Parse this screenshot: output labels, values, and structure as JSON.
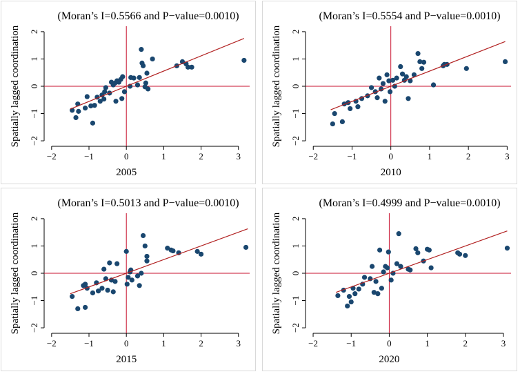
{
  "colors": {
    "point": "#1a476f",
    "fit_line": "#b22222",
    "reference_line": "#c8102e",
    "axis": "#000000",
    "panel_border": "#d9d9d9"
  },
  "chart_data": [
    {
      "type": "scatter",
      "title": "(Moran’s I=0.5566 and P−value=0.0010)",
      "xlabel": "2005",
      "ylabel": "Spatially lagged coordination",
      "xlim": [
        -2.2,
        3.3
      ],
      "ylim": [
        -2.2,
        2.2
      ],
      "xticks": [
        -2,
        -1,
        0,
        1,
        2,
        3
      ],
      "yticks": [
        -2,
        -1,
        0,
        1,
        2
      ],
      "xtick_labels": [
        "−2",
        "−1",
        "0",
        "1",
        "2",
        "3"
      ],
      "ytick_labels": [
        "−2",
        "−1",
        "0",
        "1",
        "2"
      ],
      "reference_lines": {
        "x": 0,
        "y": 0
      },
      "fit_line": {
        "slope": 0.5566,
        "intercept": 0.0,
        "x_range": [
          -1.5,
          3.15
        ]
      },
      "points": [
        [
          -1.45,
          -0.88
        ],
        [
          -1.35,
          -1.15
        ],
        [
          -1.3,
          -0.65
        ],
        [
          -1.28,
          -0.92
        ],
        [
          -1.1,
          -0.8
        ],
        [
          -1.05,
          -0.38
        ],
        [
          -0.9,
          -1.35
        ],
        [
          -0.95,
          -0.72
        ],
        [
          -0.85,
          -0.7
        ],
        [
          -0.78,
          -0.4
        ],
        [
          -0.7,
          -0.55
        ],
        [
          -0.65,
          -0.32
        ],
        [
          -0.6,
          -0.47
        ],
        [
          -0.58,
          -0.2
        ],
        [
          -0.55,
          -0.05
        ],
        [
          -0.45,
          -0.25
        ],
        [
          -0.4,
          0.15
        ],
        [
          -0.35,
          0.05
        ],
        [
          -0.3,
          0.12
        ],
        [
          -0.28,
          -0.55
        ],
        [
          -0.25,
          0.2
        ],
        [
          -0.2,
          0.15
        ],
        [
          -0.15,
          0.25
        ],
        [
          -0.12,
          -0.45
        ],
        [
          -0.1,
          0.35
        ],
        [
          -0.05,
          -0.2
        ],
        [
          0.1,
          0.0
        ],
        [
          0.12,
          0.32
        ],
        [
          0.2,
          0.3
        ],
        [
          0.3,
          0.05
        ],
        [
          0.35,
          0.32
        ],
        [
          0.4,
          1.35
        ],
        [
          0.42,
          0.85
        ],
        [
          0.45,
          0.75
        ],
        [
          0.5,
          -0.02
        ],
        [
          0.52,
          0.12
        ],
        [
          0.55,
          0.48
        ],
        [
          0.58,
          -0.1
        ],
        [
          0.7,
          1.0
        ],
        [
          1.35,
          0.75
        ],
        [
          1.5,
          0.9
        ],
        [
          1.6,
          0.82
        ],
        [
          1.65,
          0.7
        ],
        [
          1.75,
          0.7
        ],
        [
          3.15,
          0.95
        ]
      ]
    },
    {
      "type": "scatter",
      "title": "(Moran’s I=0.5554 and P−value=0.0010)",
      "xlabel": "2010",
      "ylabel": "Spatially lagged coordination",
      "xlim": [
        -2.2,
        3.1
      ],
      "ylim": [
        -2.2,
        2.2
      ],
      "xticks": [
        -2,
        -1,
        0,
        1,
        2,
        3
      ],
      "yticks": [
        -2,
        -1,
        0,
        1,
        2
      ],
      "xtick_labels": [
        "−2",
        "−1",
        "0",
        "1",
        "2",
        "3"
      ],
      "ytick_labels": [
        "−2",
        "−1",
        "0",
        "1",
        "2"
      ],
      "reference_lines": {
        "x": 0,
        "y": 0
      },
      "fit_line": {
        "slope": 0.5554,
        "intercept": 0.0,
        "x_range": [
          -1.55,
          2.95
        ]
      },
      "points": [
        [
          -1.5,
          -1.38
        ],
        [
          -1.45,
          -1.0
        ],
        [
          -1.25,
          -1.3
        ],
        [
          -1.2,
          -0.65
        ],
        [
          -1.1,
          -0.6
        ],
        [
          -1.05,
          -0.82
        ],
        [
          -0.9,
          -0.55
        ],
        [
          -0.85,
          -0.75
        ],
        [
          -0.75,
          -0.45
        ],
        [
          -0.6,
          -0.35
        ],
        [
          -0.5,
          -0.05
        ],
        [
          -0.4,
          -0.2
        ],
        [
          -0.35,
          -0.42
        ],
        [
          -0.3,
          0.3
        ],
        [
          -0.25,
          -0.1
        ],
        [
          -0.2,
          0.1
        ],
        [
          -0.15,
          -0.55
        ],
        [
          -0.1,
          0.42
        ],
        [
          -0.05,
          0.2
        ],
        [
          -0.02,
          -0.2
        ],
        [
          0.05,
          0.22
        ],
        [
          0.1,
          0.0
        ],
        [
          0.15,
          0.3
        ],
        [
          0.25,
          0.72
        ],
        [
          0.3,
          0.45
        ],
        [
          0.35,
          0.22
        ],
        [
          0.4,
          0.35
        ],
        [
          0.45,
          -0.45
        ],
        [
          0.5,
          0.2
        ],
        [
          0.6,
          0.42
        ],
        [
          0.7,
          1.2
        ],
        [
          0.75,
          0.9
        ],
        [
          0.8,
          0.65
        ],
        [
          0.85,
          0.88
        ],
        [
          1.1,
          0.05
        ],
        [
          1.35,
          0.75
        ],
        [
          1.38,
          0.8
        ],
        [
          1.45,
          0.8
        ],
        [
          1.95,
          0.65
        ],
        [
          2.95,
          0.9
        ]
      ]
    },
    {
      "type": "scatter",
      "title": "(Moran’s I=0.5013 and P−value=0.0010)",
      "xlabel": "2015",
      "ylabel": "Spatially lagged coordination",
      "xlim": [
        -2.2,
        3.3
      ],
      "ylim": [
        -2.2,
        2.2
      ],
      "xticks": [
        -2,
        -1,
        0,
        1,
        2,
        3
      ],
      "yticks": [
        -2,
        -1,
        0,
        1,
        2
      ],
      "xtick_labels": [
        "−2",
        "−1",
        "0",
        "1",
        "2",
        "3"
      ],
      "ytick_labels": [
        "−2",
        "−1",
        "0",
        "1",
        "2"
      ],
      "reference_lines": {
        "x": 0,
        "y": 0
      },
      "fit_line": {
        "slope": 0.5013,
        "intercept": 0.0,
        "x_range": [
          -1.5,
          3.25
        ]
      },
      "points": [
        [
          -1.45,
          -0.85
        ],
        [
          -1.3,
          -1.3
        ],
        [
          -1.15,
          -0.45
        ],
        [
          -1.1,
          -0.4
        ],
        [
          -1.1,
          -1.25
        ],
        [
          -1.05,
          -0.55
        ],
        [
          -0.9,
          -0.72
        ],
        [
          -0.8,
          -0.35
        ],
        [
          -0.75,
          -0.65
        ],
        [
          -0.65,
          -0.55
        ],
        [
          -0.6,
          0.15
        ],
        [
          -0.55,
          -0.2
        ],
        [
          -0.5,
          -0.62
        ],
        [
          -0.45,
          0.38
        ],
        [
          -0.4,
          -0.25
        ],
        [
          -0.35,
          -0.68
        ],
        [
          -0.3,
          -0.3
        ],
        [
          -0.25,
          0.35
        ],
        [
          0.0,
          0.8
        ],
        [
          0.02,
          -0.4
        ],
        [
          0.05,
          -0.15
        ],
        [
          0.1,
          0.05
        ],
        [
          0.12,
          0.12
        ],
        [
          0.15,
          -0.25
        ],
        [
          0.3,
          -0.1
        ],
        [
          0.35,
          -0.45
        ],
        [
          0.4,
          0.0
        ],
        [
          0.45,
          1.38
        ],
        [
          0.5,
          1.0
        ],
        [
          0.55,
          0.45
        ],
        [
          0.55,
          0.62
        ],
        [
          1.1,
          0.92
        ],
        [
          1.2,
          0.85
        ],
        [
          1.25,
          0.82
        ],
        [
          1.4,
          0.75
        ],
        [
          1.9,
          0.8
        ],
        [
          2.0,
          0.7
        ],
        [
          3.2,
          0.95
        ]
      ]
    },
    {
      "type": "scatter",
      "title": "(Moran’s I=0.4999 and P−value=0.0010)",
      "xlabel": "2020",
      "ylabel": "Spatially lagged coordination",
      "xlim": [
        -2.2,
        3.2
      ],
      "ylim": [
        -2.2,
        2.2
      ],
      "xticks": [
        -2,
        -1,
        0,
        1,
        2,
        3
      ],
      "yticks": [
        -2,
        -1,
        0,
        1,
        2
      ],
      "xtick_labels": [
        "−2",
        "−1",
        "0",
        "1",
        "2",
        "3"
      ],
      "ytick_labels": [
        "−2",
        "−1",
        "0",
        "1",
        "2"
      ],
      "reference_lines": {
        "x": 0,
        "y": 0
      },
      "fit_line": {
        "slope": 0.4999,
        "intercept": 0.0,
        "x_range": [
          -1.4,
          3.1
        ]
      },
      "points": [
        [
          -1.35,
          -0.82
        ],
        [
          -1.2,
          -0.62
        ],
        [
          -1.1,
          -1.2
        ],
        [
          -1.05,
          -0.85
        ],
        [
          -1.0,
          -1.05
        ],
        [
          -0.95,
          -0.55
        ],
        [
          -0.9,
          -0.75
        ],
        [
          -0.8,
          -0.58
        ],
        [
          -0.7,
          -0.4
        ],
        [
          -0.65,
          -0.15
        ],
        [
          -0.5,
          -0.2
        ],
        [
          -0.45,
          0.25
        ],
        [
          -0.4,
          -0.7
        ],
        [
          -0.35,
          -0.3
        ],
        [
          -0.3,
          -0.75
        ],
        [
          -0.25,
          0.85
        ],
        [
          -0.2,
          -0.55
        ],
        [
          -0.15,
          0.05
        ],
        [
          -0.1,
          0.25
        ],
        [
          -0.05,
          0.2
        ],
        [
          -0.02,
          0.78
        ],
        [
          0.05,
          -0.25
        ],
        [
          0.1,
          0.0
        ],
        [
          0.2,
          0.35
        ],
        [
          0.25,
          1.45
        ],
        [
          0.3,
          0.25
        ],
        [
          0.5,
          0.15
        ],
        [
          0.55,
          0.12
        ],
        [
          0.7,
          0.9
        ],
        [
          0.75,
          0.75
        ],
        [
          0.9,
          0.45
        ],
        [
          1.0,
          0.88
        ],
        [
          1.05,
          0.85
        ],
        [
          1.1,
          0.2
        ],
        [
          1.8,
          0.75
        ],
        [
          1.85,
          0.7
        ],
        [
          2.0,
          0.65
        ],
        [
          3.1,
          0.92
        ]
      ]
    }
  ]
}
